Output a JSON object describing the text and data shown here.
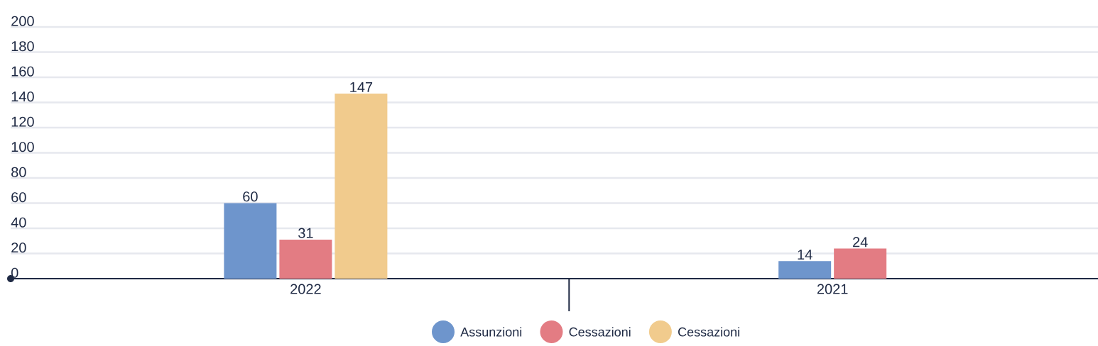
{
  "chart_data": {
    "type": "bar",
    "categories": [
      "2022",
      "2021"
    ],
    "series": [
      {
        "name": "Assunzioni",
        "color": "#6e95cc",
        "values": [
          60,
          14
        ]
      },
      {
        "name": "Cessazioni",
        "color": "#e37c83",
        "values": [
          31,
          24
        ]
      },
      {
        "name": "Cessazioni",
        "color": "#f1cb8d",
        "values": [
          147,
          null
        ]
      }
    ],
    "ylim": [
      0,
      200
    ],
    "yticks": [
      0,
      20,
      40,
      60,
      80,
      100,
      120,
      140,
      160,
      180,
      200
    ],
    "grid": "y",
    "data_labels": true,
    "legend": "bottom"
  }
}
